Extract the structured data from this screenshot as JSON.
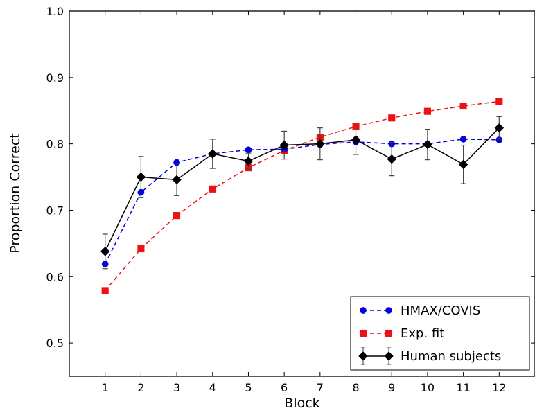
{
  "chart_data": {
    "type": "line",
    "title": "",
    "xlabel": "Block",
    "ylabel": "Proportion Correct",
    "xlim": [
      0,
      13
    ],
    "ylim": [
      0.45,
      1.0
    ],
    "x_ticks": [
      "1",
      "2",
      "3",
      "4",
      "5",
      "6",
      "7",
      "8",
      "9",
      "10",
      "11",
      "12"
    ],
    "y_ticks": [
      "0.5",
      "0.6",
      "0.7",
      "0.8",
      "0.9",
      "1.0"
    ],
    "legend_position": "bottom-right",
    "grid": false,
    "x": [
      1,
      2,
      3,
      4,
      5,
      6,
      7,
      8,
      9,
      10,
      11,
      12
    ],
    "series": [
      {
        "name": "HMAX/COVIS",
        "color": "#0000dd",
        "line_style": "dashed",
        "marker": "circle",
        "values": [
          0.619,
          0.727,
          0.772,
          0.785,
          0.791,
          0.792,
          0.799,
          0.803,
          0.8,
          0.8,
          0.807,
          0.806
        ]
      },
      {
        "name": "Exp. fit",
        "color": "#ee1111",
        "line_style": "dashed",
        "marker": "square",
        "values": [
          0.579,
          0.642,
          0.692,
          0.732,
          0.764,
          0.79,
          0.81,
          0.826,
          0.839,
          0.849,
          0.857,
          0.864
        ]
      },
      {
        "name": "Human subjects",
        "color": "#000000",
        "line_style": "solid",
        "marker": "diamond",
        "values": [
          0.638,
          0.75,
          0.746,
          0.785,
          0.774,
          0.798,
          0.8,
          0.806,
          0.777,
          0.799,
          0.769,
          0.824
        ],
        "errors": [
          0.026,
          0.031,
          0.024,
          0.022,
          0.012,
          0.021,
          0.024,
          0.022,
          0.025,
          0.023,
          0.029,
          0.017
        ]
      }
    ]
  }
}
